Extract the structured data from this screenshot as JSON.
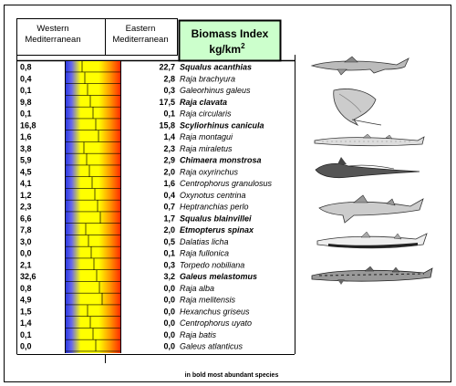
{
  "chart_data": {
    "type": "table",
    "title": "",
    "headers": {
      "western": [
        "Western",
        "Mediterranean"
      ],
      "eastern": [
        "Eastern",
        "Mediterranean"
      ],
      "index_title": "Biomass Index",
      "index_unit": "kg/km",
      "index_unit_sup": "2"
    },
    "footnote": "in bold most abundant species",
    "colors": {
      "west_bar": "#2233dd",
      "east_bar": "#ff2200",
      "middle": "#ffff00",
      "header_box": "#ccffcc",
      "header_box_border": "#000000"
    },
    "rows": [
      {
        "species": "Squalus acanthias",
        "west": "0,8",
        "east": "22,7",
        "bold": true
      },
      {
        "species": "Raja brachyura",
        "west": "0,4",
        "east": "2,8",
        "bold": false
      },
      {
        "species": "Galeorhinus galeus",
        "west": "0,1",
        "east": "0,3",
        "bold": false
      },
      {
        "species": "Raja clavata",
        "west": "9,8",
        "east": "17,5",
        "bold": true
      },
      {
        "species": "Raja circularis",
        "west": "0,1",
        "east": "0,1",
        "bold": false
      },
      {
        "species": "Scyliorhinus canicula",
        "west": "16,8",
        "east": "15,8",
        "bold": true
      },
      {
        "species": "Raja montagui",
        "west": "1,6",
        "east": "1,4",
        "bold": false
      },
      {
        "species": "Raja miraletus",
        "west": "3,8",
        "east": "2,3",
        "bold": false
      },
      {
        "species": "Chimaera monstrosa",
        "west": "5,9",
        "east": "2,9",
        "bold": true
      },
      {
        "species": "Raja oxyrinchus",
        "west": "4,5",
        "east": "2,0",
        "bold": false
      },
      {
        "species": "Centrophorus granulosus",
        "west": "4,1",
        "east": "1,6",
        "bold": false
      },
      {
        "species": "Oxynotus centrina",
        "west": "1,2",
        "east": "0,4",
        "bold": false
      },
      {
        "species": "Heptranchias perlo",
        "west": "2,3",
        "east": "0,7",
        "bold": false
      },
      {
        "species": "Squalus blainvillei",
        "west": "6,6",
        "east": "1,7",
        "bold": true
      },
      {
        "species": "Etmopterus spinax",
        "west": "7,8",
        "east": "2,0",
        "bold": true
      },
      {
        "species": "Dalatias licha",
        "west": "3,0",
        "east": "0,5",
        "bold": false
      },
      {
        "species": "Raja fullonica",
        "west": "0,0",
        "east": "0,1",
        "bold": false
      },
      {
        "species": "Torpedo nobiliana",
        "west": "2,1",
        "east": "0,3",
        "bold": false
      },
      {
        "species": "Galeus melastomus",
        "west": "32,6",
        "east": "3,2",
        "bold": true
      },
      {
        "species": "Raja alba",
        "west": "0,8",
        "east": "0,0",
        "bold": false
      },
      {
        "species": "Raja melitensis",
        "west": "4,9",
        "east": "0,0",
        "bold": false
      },
      {
        "species": "Hexanchus griseus",
        "west": "1,5",
        "east": "0,0",
        "bold": false
      },
      {
        "species": "Centrophorus uyato",
        "west": "1,4",
        "east": "0,0",
        "bold": false
      },
      {
        "species": "Raja batis",
        "west": "0,1",
        "east": "0,0",
        "bold": false
      },
      {
        "species": "Galeus atlanticus",
        "west": "0,0",
        "east": "0,0",
        "bold": false
      }
    ],
    "illustrations": [
      "shark-icon",
      "ray-icon",
      "catshark-icon",
      "chimaera-icon",
      "dogfish-icon",
      "lantern-shark-icon",
      "blackmouth-catshark-icon"
    ]
  }
}
